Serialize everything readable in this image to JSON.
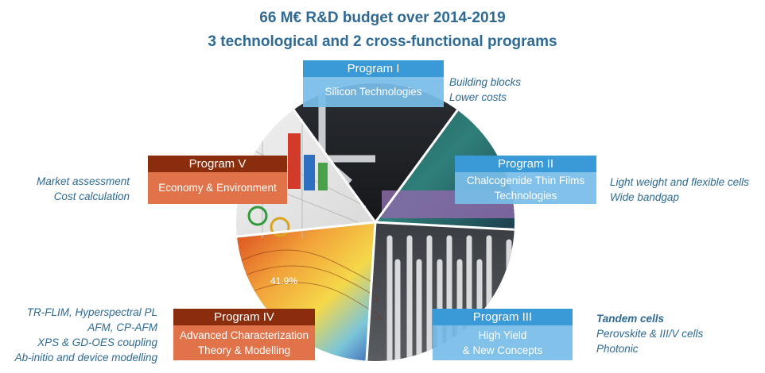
{
  "title": {
    "line1": "66 M€ R&D budget over 2014-2019",
    "line2": "3 technological and 2 cross-functional programs"
  },
  "programs": [
    {
      "name": "Program I",
      "lines": [
        "Silicon Technologies"
      ]
    },
    {
      "name": "Program II",
      "lines": [
        "Chalcogenide Thin Films",
        "Technologies"
      ]
    },
    {
      "name": "Program III",
      "lines": [
        "High Yield",
        "& New Concepts"
      ]
    },
    {
      "name": "Program IV",
      "lines": [
        "Advanced Characterization",
        "Theory & Modelling"
      ]
    },
    {
      "name": "Program V",
      "lines": [
        "Economy & Environment"
      ]
    }
  ],
  "notes": {
    "program1": [
      "Building blocks",
      "Lower costs"
    ],
    "program2": [
      "Light weight and flexible cells",
      "Wide bandgap"
    ],
    "program3": {
      "heading": "Tandem cells",
      "lines": [
        "Perovskite & III/V cells",
        "Photonic"
      ]
    },
    "program4": [
      "TR-FLIM, Hyperspectral PL",
      "AFM, CP-AFM",
      "XPS & GD-OES coupling",
      "Ab-initio and device modelling"
    ],
    "program5": [
      "Market assessment",
      "Cost calculation"
    ]
  },
  "image_labels": {
    "efficiency": "41.9%"
  },
  "colors": {
    "title": "#2e6a93",
    "blue_header": "#3a9ad7",
    "blue_body": "#78bde8",
    "orange_header": "#8a2d0c",
    "orange_body": "#e0734a"
  }
}
